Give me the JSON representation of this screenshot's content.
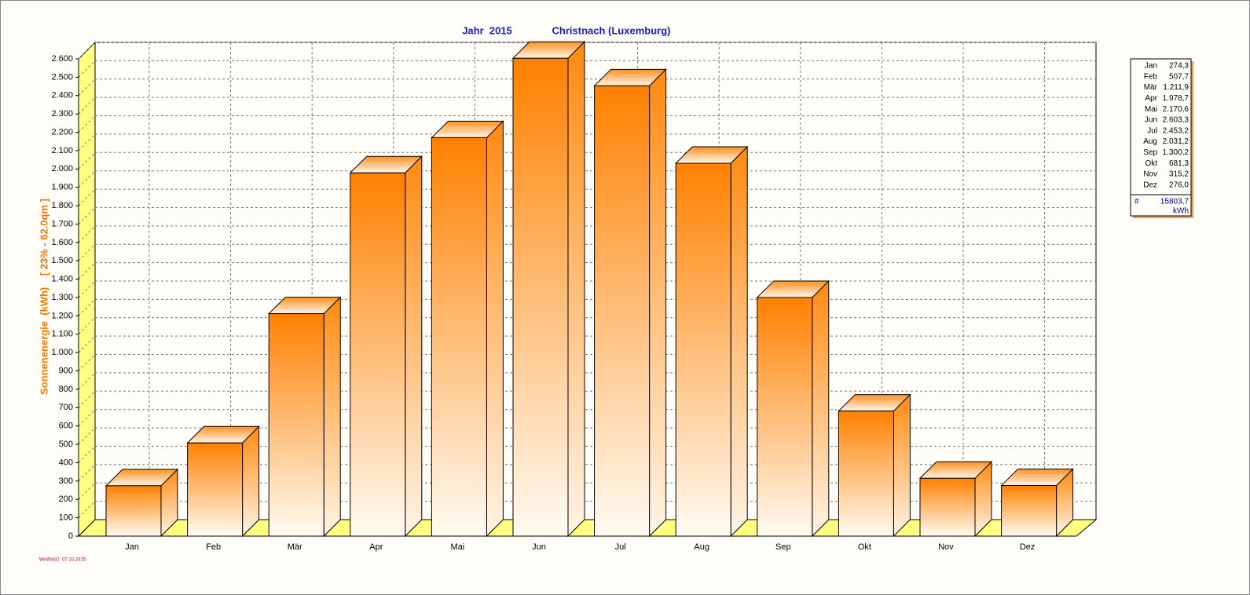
{
  "chart_data": {
    "type": "bar3d",
    "title": "Jahr  2015",
    "subtitle": "Christnach (Luxemburg)",
    "y_label": "Sonnenenergie  (kWh)    [ 23% - 62.0qm ]",
    "categories": [
      "Jan",
      "Feb",
      "Mär",
      "Apr",
      "Mai",
      "Jun",
      "Jul",
      "Aug",
      "Sep",
      "Okt",
      "Nov",
      "Dez"
    ],
    "values": [
      274.3,
      507.7,
      1211.9,
      1978.7,
      2170.6,
      2603.3,
      2453.2,
      2031.2,
      1300.2,
      681.3,
      315.2,
      276.0
    ],
    "value_labels": [
      "274,3",
      "507,7",
      "1.211,9",
      "1.978,7",
      "2.170,6",
      "2.603,3",
      "2.453,2",
      "2.031,2",
      "1.300,2",
      "681,3",
      "315,2",
      "276,0"
    ],
    "total": {
      "value": 15803.7,
      "label": "15803,7"
    },
    "total_symbol": "#",
    "total_unit": "kWh",
    "color": "#ff8000",
    "floor_color": "#ffff80",
    "ylim": [
      0,
      2600
    ],
    "yticks": [
      0,
      100,
      200,
      300,
      400,
      500,
      600,
      700,
      800,
      900,
      {
        "value": 1000,
        "label": "1.000"
      },
      {
        "value": 1100,
        "label": "1.100"
      },
      {
        "value": 1200,
        "label": "1.200"
      },
      {
        "value": 1300,
        "label": "1.300"
      },
      {
        "value": 1400,
        "label": "1.400"
      },
      {
        "value": 1500,
        "label": "1.500"
      },
      {
        "value": 1600,
        "label": "1.600"
      },
      {
        "value": 1700,
        "label": "1.700"
      },
      {
        "value": 1800,
        "label": "1.800"
      },
      {
        "value": 1900,
        "label": "1.900"
      },
      {
        "value": 2000,
        "label": "2.000"
      },
      {
        "value": 2100,
        "label": "2.100"
      },
      {
        "value": 2200,
        "label": "2.200"
      },
      {
        "value": 2300,
        "label": "2.300"
      },
      {
        "value": 2400,
        "label": "2.400"
      },
      {
        "value": 2500,
        "label": "2.500"
      },
      {
        "value": 2600,
        "label": "2.600"
      }
    ],
    "grid": true,
    "footer": "WvWin32  07.10.2025"
  }
}
